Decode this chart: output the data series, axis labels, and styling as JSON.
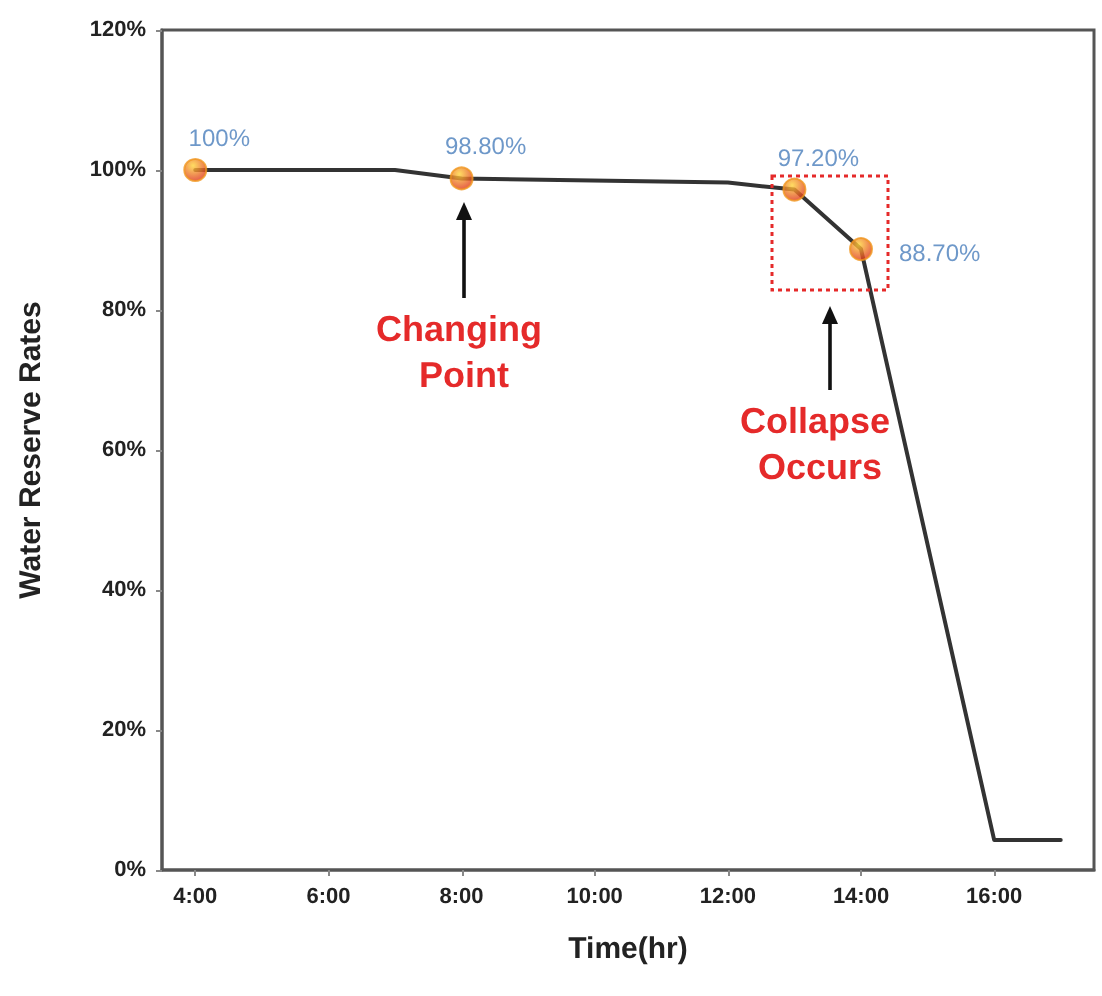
{
  "chart_data": {
    "type": "line",
    "xlabel": "Time(hr)",
    "ylabel": "Water Reserve Rates",
    "xlim": [
      3.5,
      17.5
    ],
    "ylim": [
      0,
      120
    ],
    "xticks": [
      {
        "value": 4,
        "label": "4:00"
      },
      {
        "value": 6,
        "label": "6:00"
      },
      {
        "value": 8,
        "label": "8:00"
      },
      {
        "value": 10,
        "label": "10:00"
      },
      {
        "value": 12,
        "label": "12:00"
      },
      {
        "value": 14,
        "label": "14:00"
      },
      {
        "value": 16,
        "label": "16:00"
      }
    ],
    "yticks": [
      {
        "value": 0,
        "label": "0%"
      },
      {
        "value": 20,
        "label": "20%"
      },
      {
        "value": 40,
        "label": "40%"
      },
      {
        "value": 60,
        "label": "60%"
      },
      {
        "value": 80,
        "label": "80%"
      },
      {
        "value": 100,
        "label": "100%"
      },
      {
        "value": 120,
        "label": "120%"
      }
    ],
    "series": [
      {
        "color": "#333333",
        "marker": "none",
        "x": [
          4,
          7,
          8,
          12,
          13,
          14,
          16,
          17
        ],
        "values": [
          100,
          100,
          98.8,
          98.2,
          97.2,
          88.7,
          4.3,
          4.3
        ]
      },
      {
        "type": "scatter",
        "color": "#f0961e",
        "marker": "circle",
        "x": [
          4,
          8,
          13,
          14
        ],
        "values": [
          100,
          98.8,
          97.2,
          88.7
        ],
        "value_labels": [
          "100%",
          "98.80%",
          "97.20%",
          "88.70%"
        ]
      }
    ],
    "annotations": [
      "Changing Point",
      "Collapse Occurs"
    ]
  }
}
